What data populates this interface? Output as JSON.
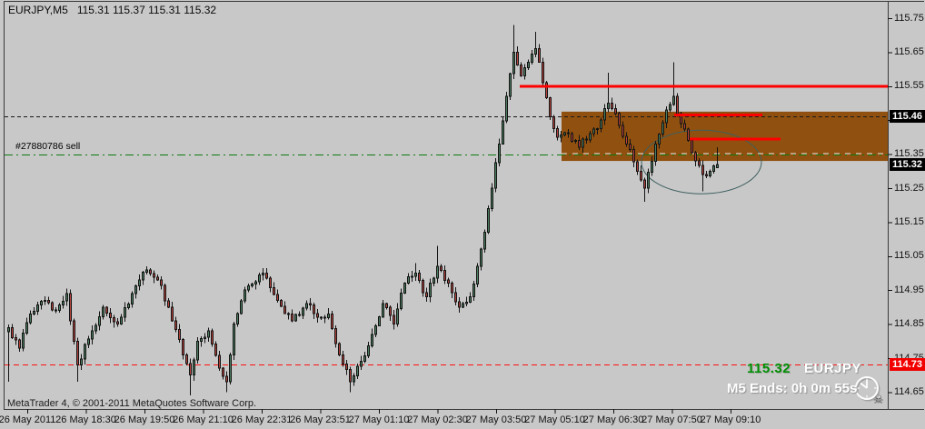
{
  "header": {
    "symbol_period": "EURJPY,M5",
    "ohlc": "115.31 115.37 115.31 115.32"
  },
  "overlay": {
    "order_label": "#27880786 sell",
    "credits": "MetaTrader 4, © 2001-2011 MetaQuotes Software Corp."
  },
  "info_panel": {
    "price": "115.32",
    "symbol": "EURJPY",
    "countdown": "M5 Ends: 0h 0m 55s",
    "price_color": "#008f00",
    "text_color": "#ffffff"
  },
  "icons": {
    "skull": "☠",
    "clock": "analog-clock"
  },
  "price_axis": {
    "boxes": [
      {
        "label": "115.46",
        "price": 115.46,
        "bg": "#000000",
        "fg": "#ffffff"
      },
      {
        "label": "115.32",
        "price": 115.32,
        "bg": "#000000",
        "fg": "#ffffff"
      },
      {
        "label": "114.73",
        "price": 114.73,
        "bg": "#f20000",
        "fg": "#ffffff"
      }
    ]
  },
  "chart_data": {
    "type": "candlestick",
    "symbol": "EURJPY",
    "period": "M5",
    "current_ohlc": {
      "open": 115.31,
      "high": 115.37,
      "low": 115.31,
      "close": 115.32
    },
    "y_range": [
      114.6,
      115.79
    ],
    "y_ticks": [
      115.75,
      115.65,
      115.55,
      115.45,
      115.35,
      115.25,
      115.15,
      115.05,
      114.95,
      114.85,
      114.75,
      114.65
    ],
    "x_labels": [
      "26 May 2011",
      "26 May 18:30",
      "26 May 19:50",
      "26 May 21:10",
      "26 May 22:31",
      "26 May 23:51",
      "27 May 01:10",
      "27 May 02:30",
      "27 May 03:50",
      "27 May 05:10",
      "27 May 06:30",
      "27 May 07:50",
      "27 May 09:10"
    ],
    "bars_count": 196,
    "price_path": [
      [
        0,
        114.84
      ],
      [
        3,
        114.78
      ],
      [
        6,
        114.88
      ],
      [
        10,
        114.92
      ],
      [
        13,
        114.89
      ],
      [
        16,
        114.94
      ],
      [
        19,
        114.73
      ],
      [
        23,
        114.83
      ],
      [
        26,
        114.9
      ],
      [
        30,
        114.85
      ],
      [
        34,
        114.94
      ],
      [
        38,
        115.01
      ],
      [
        41,
        114.98
      ],
      [
        44,
        114.9
      ],
      [
        48,
        114.76
      ],
      [
        50,
        114.7
      ],
      [
        52,
        114.8
      ],
      [
        55,
        114.83
      ],
      [
        58,
        114.72
      ],
      [
        60,
        114.68
      ],
      [
        62,
        114.85
      ],
      [
        65,
        114.95
      ],
      [
        70,
        115.0
      ],
      [
        74,
        114.92
      ],
      [
        78,
        114.86
      ],
      [
        82,
        114.91
      ],
      [
        85,
        114.87
      ],
      [
        88,
        114.88
      ],
      [
        91,
        114.76
      ],
      [
        94,
        114.68
      ],
      [
        97,
        114.74
      ],
      [
        100,
        114.82
      ],
      [
        103,
        114.91
      ],
      [
        106,
        114.85
      ],
      [
        109,
        114.97
      ],
      [
        112,
        115.0
      ],
      [
        115,
        114.93
      ],
      [
        118,
        115.02
      ],
      [
        121,
        114.97
      ],
      [
        124,
        114.9
      ],
      [
        127,
        114.93
      ],
      [
        129,
        115.02
      ],
      [
        131,
        115.12
      ],
      [
        133,
        115.25
      ],
      [
        135,
        115.38
      ],
      [
        137,
        115.52
      ],
      [
        139,
        115.65
      ],
      [
        141,
        115.58
      ],
      [
        143,
        115.62
      ],
      [
        145,
        115.66
      ],
      [
        147,
        115.56
      ],
      [
        149,
        115.46
      ],
      [
        151,
        115.4
      ],
      [
        154,
        115.41
      ],
      [
        157,
        115.37
      ],
      [
        160,
        115.41
      ],
      [
        163,
        115.45
      ],
      [
        165,
        115.5
      ],
      [
        167,
        115.47
      ],
      [
        170,
        115.38
      ],
      [
        173,
        115.3
      ],
      [
        175,
        115.25
      ],
      [
        178,
        115.38
      ],
      [
        181,
        115.48
      ],
      [
        183,
        115.52
      ],
      [
        185,
        115.44
      ],
      [
        187,
        115.39
      ],
      [
        189,
        115.33
      ],
      [
        191,
        115.29
      ],
      [
        193,
        115.3
      ],
      [
        195,
        115.32
      ]
    ],
    "spikes": [
      {
        "bar": 0,
        "low": 114.68
      },
      {
        "bar": 19,
        "low": 114.68
      },
      {
        "bar": 50,
        "low": 114.64
      },
      {
        "bar": 60,
        "low": 114.65
      },
      {
        "bar": 94,
        "low": 114.65
      },
      {
        "bar": 112,
        "high": 115.03
      },
      {
        "bar": 118,
        "high": 115.08
      },
      {
        "bar": 139,
        "high": 115.73
      },
      {
        "bar": 145,
        "high": 115.71
      },
      {
        "bar": 165,
        "high": 115.59
      },
      {
        "bar": 175,
        "low": 115.21
      },
      {
        "bar": 183,
        "high": 115.62
      },
      {
        "bar": 191,
        "low": 115.24
      },
      {
        "bar": 195,
        "high": 115.37
      }
    ],
    "levels": [
      {
        "name": "resistance-major",
        "price": 115.55,
        "color": "#ff0000",
        "width": 3,
        "dash": null,
        "from_bar": 141,
        "to": "axis",
        "above": true
      },
      {
        "name": "resistance-zone-top",
        "price": 115.465,
        "color": "#ff0000",
        "width": 3,
        "dash": null,
        "from_bar": 183.5,
        "to_bar": 207.75,
        "above": true
      },
      {
        "name": "resistance-minor",
        "price": 115.395,
        "color": "#ff0000",
        "width": 3,
        "dash": null,
        "from_bar": 187.75,
        "to_bar": 212.75,
        "above": true
      },
      {
        "name": "level-dashed-black",
        "price": 115.46,
        "color": "#1a1a1a",
        "width": 1,
        "dash": "4,3",
        "from": "left",
        "to": "axis",
        "above": false
      },
      {
        "name": "support-dashed-red",
        "price": 114.73,
        "color": "#ff1010",
        "width": 1,
        "dash": "6,4",
        "from": "left",
        "to": "axis",
        "above": false
      },
      {
        "name": "ask-line",
        "price": 115.352,
        "color": "#ececec",
        "width": 1,
        "dash": "6,6",
        "from_bar": 152.5,
        "to": "axis",
        "above": false
      },
      {
        "name": "sell-order-line",
        "price": 115.348,
        "color": "#0d7a10",
        "width": 1,
        "dash": "9,4,2,4",
        "from": "left",
        "to": "axis",
        "above": false
      }
    ],
    "zone": {
      "name": "supply-zone",
      "price_top": 115.475,
      "price_bottom": 115.33,
      "from_bar": 152.5,
      "to": "axis",
      "color": "#90500f"
    },
    "ellipse": {
      "center_bar": 191,
      "center_price": 115.327,
      "rx_bars": 16.5,
      "ry_price": 0.0936,
      "color": "#3f5f5f"
    },
    "colors": {
      "bull": "#4a7f5f",
      "bear": "#b8423c",
      "outline": "#141414",
      "background": "#c8c8c8",
      "border": "#3a3a3a"
    }
  }
}
